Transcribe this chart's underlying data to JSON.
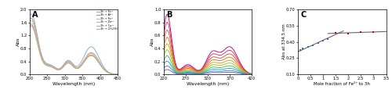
{
  "panel_A": {
    "xlabel": "Wavelength (nm)",
    "ylabel": "Abs",
    "xlim": [
      200,
      450
    ],
    "ylim": [
      0,
      2
    ],
    "yticks": [
      0,
      0.4,
      0.8,
      1.2,
      1.6,
      2.0
    ],
    "xticks": [
      200,
      250,
      300,
      350,
      400,
      450
    ],
    "legend": [
      "3h + Fe³⁺",
      "3h + Al³⁺",
      "3h + Fe²⁺",
      "3h + Zn²⁺",
      "3h + Cu²⁺",
      "3h + CH₃OH"
    ],
    "colors": [
      "#7BAFD4",
      "#D4826E",
      "#BCCF8A",
      "#9DBDD6",
      "#D49AB0",
      "#C8A96E"
    ],
    "label": "A"
  },
  "panel_B": {
    "xlabel": "Wavelength (nm)",
    "ylabel": "Abs",
    "xlim": [
      220,
      420
    ],
    "ylim": [
      0,
      1
    ],
    "yticks": [
      0,
      0.2,
      0.4,
      0.6,
      0.8,
      1.0
    ],
    "xticks": [
      220,
      270,
      320,
      370,
      420
    ],
    "colors": [
      "#C0007A",
      "#D03060",
      "#DC5030",
      "#E07020",
      "#D0A000",
      "#98C020",
      "#40B870",
      "#20A8B8",
      "#3888D0",
      "#6060C8"
    ],
    "label": "B"
  },
  "panel_C": {
    "xlabel": "Mole fraction of Fe²⁺ to 3h",
    "ylabel": "Abs at 334.5 nm",
    "xlim": [
      0,
      3.5
    ],
    "ylim": [
      0.1,
      0.7
    ],
    "yticks": [
      0.1,
      0.25,
      0.4,
      0.55,
      0.7
    ],
    "xtick_vals": [
      0,
      0.5,
      1.0,
      1.5,
      2.0,
      2.5,
      3.0,
      3.5
    ],
    "xtick_labels": [
      "0",
      "0.5",
      "1",
      "1.5",
      "2",
      "2.5",
      "3",
      "3.5"
    ],
    "blue_x": [
      0.1,
      0.2,
      0.4,
      0.6,
      0.8,
      1.0,
      1.2,
      1.5
    ],
    "blue_y": [
      0.325,
      0.338,
      0.355,
      0.37,
      0.39,
      0.41,
      0.425,
      0.48
    ],
    "red_x": [
      1.5,
      2.0,
      2.5,
      3.0
    ],
    "red_y": [
      0.485,
      0.475,
      0.488,
      0.49
    ],
    "line1_x": [
      0.0,
      1.8
    ],
    "line1_y": [
      0.308,
      0.5
    ],
    "line2_x": [
      1.2,
      3.5
    ],
    "line2_y": [
      0.477,
      0.495
    ],
    "label": "C"
  }
}
